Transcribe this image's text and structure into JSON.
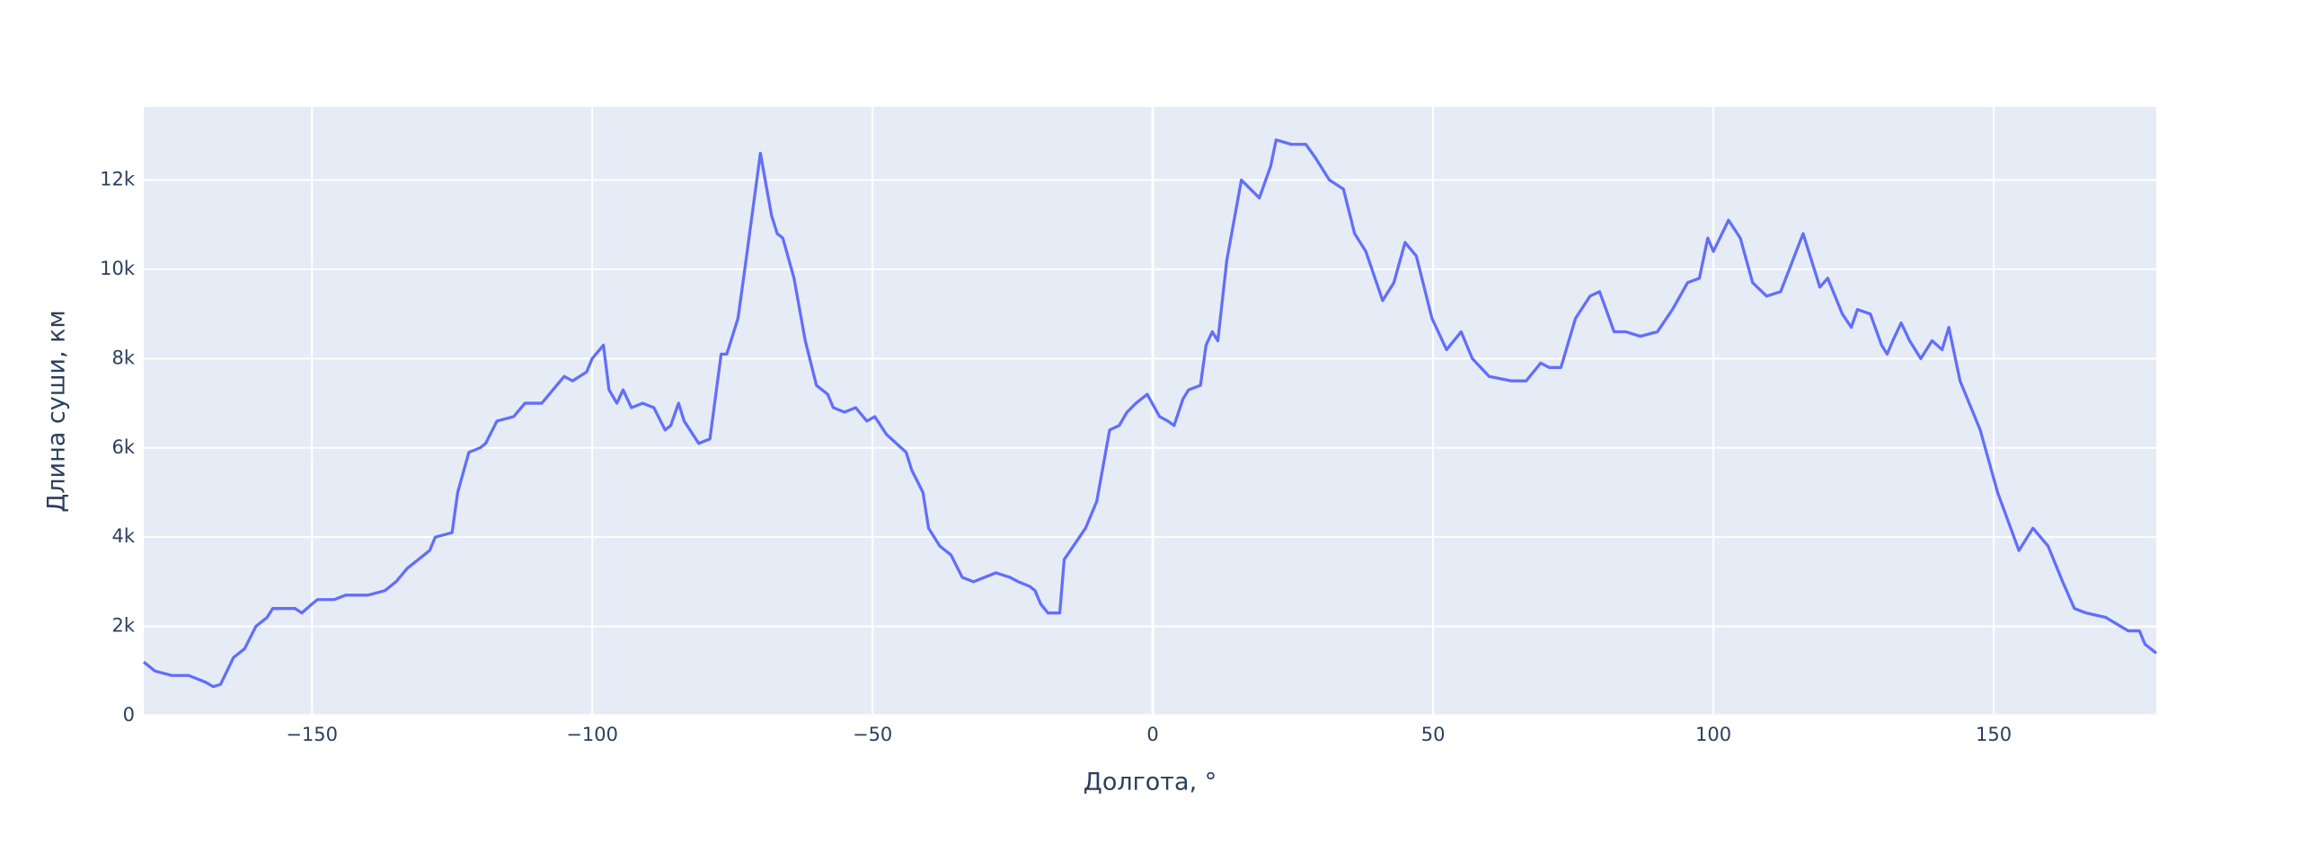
{
  "chart_data": {
    "type": "line",
    "x_label": "Долгота, °",
    "y_label": "Длина суши, км",
    "color": "#636efa",
    "background": "#e5ecf6",
    "grid": true,
    "xlim": [
      -180,
      179
    ],
    "ylim": [
      0,
      13640
    ],
    "xticks": [
      {
        "value": -150,
        "label": "−150"
      },
      {
        "value": -100,
        "label": "−100"
      },
      {
        "value": -50,
        "label": "−50"
      },
      0,
      50,
      100,
      150
    ],
    "yticks": [
      0,
      {
        "value": 2000,
        "label": "2k"
      },
      {
        "value": 4000,
        "label": "4k"
      },
      {
        "value": 6000,
        "label": "6k"
      },
      {
        "value": 8000,
        "label": "8k"
      },
      {
        "value": 10000,
        "label": "10k"
      },
      {
        "value": 12000,
        "label": "12k"
      }
    ],
    "x": [
      -180,
      -178,
      -175,
      -172,
      -169,
      -167.6,
      -166.3,
      -164,
      -162,
      -160,
      -158,
      -157,
      -153,
      -151.8,
      -150,
      -149,
      -146,
      -144,
      -140,
      -137,
      -135,
      -133,
      -131,
      -129,
      -128,
      -125,
      -124,
      -122,
      -120,
      -119,
      -117,
      -114,
      -112,
      -109,
      -105,
      -103.5,
      -101,
      -100,
      -98,
      -97,
      -95.6,
      -94.5,
      -93,
      -91,
      -89,
      -87,
      -86,
      -84.6,
      -83.6,
      -81,
      -79,
      -77,
      -76,
      -74,
      -73,
      -70,
      -68,
      -67,
      -66,
      -64,
      -62,
      -60,
      -58,
      -57,
      -55,
      -53,
      -51,
      -49.6,
      -47.5,
      -44,
      -43,
      -41,
      -40,
      -38,
      -36,
      -34,
      -32,
      -30,
      -28,
      -25.5,
      -24,
      -22,
      -21,
      -20,
      -18.7,
      -16.6,
      -15.8,
      -12,
      -10,
      -7.7,
      -6,
      -4.6,
      -3,
      -1,
      1.2,
      2.7,
      3.8,
      5.4,
      6.4,
      8.5,
      9.5,
      10.6,
      11.6,
      13.2,
      15.8,
      19,
      21,
      22,
      24.7,
      27.3,
      29,
      31.5,
      34,
      36,
      38,
      41,
      43,
      45,
      47,
      49.8,
      52.4,
      55,
      57,
      60,
      64,
      66.6,
      69.2,
      70.7,
      72.8,
      75.4,
      78,
      79.7,
      82.3,
      84.4,
      87,
      90,
      92.7,
      95.4,
      97.5,
      99,
      100,
      102.7,
      104.8,
      107,
      109.5,
      112,
      116,
      119,
      120.4,
      123,
      124.6,
      125.7,
      128,
      130,
      131,
      132,
      133.5,
      135,
      137,
      139,
      140.8,
      142,
      144,
      147.6,
      150.7,
      154.5,
      157,
      159.7,
      162.3,
      164.4,
      166.5,
      170,
      174,
      176,
      177,
      179
    ],
    "y": [
      1200,
      1000,
      900,
      900,
      750,
      650,
      700,
      1300,
      1500,
      2000,
      2200,
      2400,
      2400,
      2300,
      2500,
      2600,
      2600,
      2700,
      2700,
      2800,
      3000,
      3300,
      3500,
      3700,
      4000,
      4100,
      5000,
      5900,
      6000,
      6100,
      6600,
      6700,
      7000,
      7000,
      7600,
      7500,
      7700,
      8000,
      8300,
      7300,
      7000,
      7300,
      6900,
      7000,
      6900,
      6400,
      6500,
      7000,
      6600,
      6100,
      6200,
      8100,
      8100,
      8900,
      9800,
      12600,
      11200,
      10800,
      10700,
      9800,
      8400,
      7400,
      7200,
      6900,
      6800,
      6900,
      6600,
      6700,
      6300,
      5900,
      5500,
      5000,
      4200,
      3800,
      3600,
      3100,
      3000,
      3100,
      3200,
      3100,
      3000,
      2900,
      2800,
      2500,
      2300,
      2300,
      3500,
      4200,
      4800,
      6400,
      6500,
      6800,
      7000,
      7200,
      6700,
      6600,
      6500,
      7100,
      7300,
      7400,
      8300,
      8600,
      8400,
      10200,
      12000,
      11600,
      12300,
      12900,
      12800,
      12800,
      12500,
      12000,
      11800,
      10800,
      10400,
      9300,
      9700,
      10600,
      10300,
      8900,
      8200,
      8600,
      8000,
      7600,
      7500,
      7500,
      7900,
      7800,
      7800,
      8900,
      9400,
      9500,
      8600,
      8600,
      8500,
      8600,
      9100,
      9700,
      9800,
      10700,
      10400,
      11100,
      10700,
      9700,
      9400,
      9500,
      10800,
      9600,
      9800,
      9000,
      8700,
      9100,
      9000,
      8300,
      8100,
      8400,
      8800,
      8400,
      8000,
      8400,
      8200,
      8700,
      7500,
      6400,
      5000,
      3700,
      4200,
      3800,
      3000,
      2400,
      2300,
      2200,
      1900,
      1900,
      1600,
      1400
    ]
  }
}
